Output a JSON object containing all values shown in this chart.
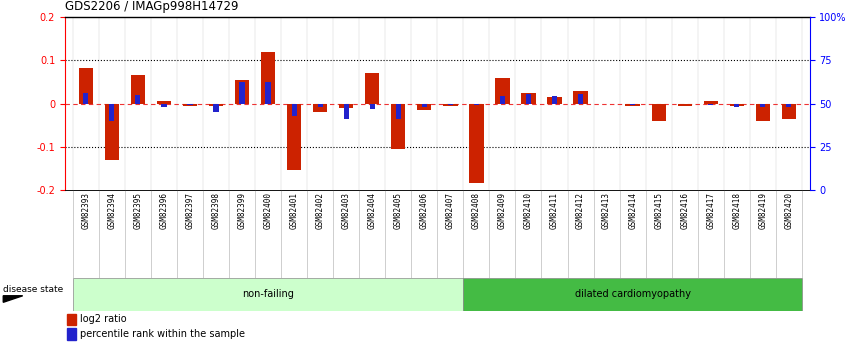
{
  "title": "GDS2206 / IMAGp998H14729",
  "samples": [
    "GSM82393",
    "GSM82394",
    "GSM82395",
    "GSM82396",
    "GSM82397",
    "GSM82398",
    "GSM82399",
    "GSM82400",
    "GSM82401",
    "GSM82402",
    "GSM82403",
    "GSM82404",
    "GSM82405",
    "GSM82406",
    "GSM82407",
    "GSM82408",
    "GSM82409",
    "GSM82410",
    "GSM82411",
    "GSM82412",
    "GSM82413",
    "GSM82414",
    "GSM82415",
    "GSM82416",
    "GSM82417",
    "GSM82418",
    "GSM82419",
    "GSM82420"
  ],
  "log2_ratio": [
    0.083,
    -0.13,
    0.065,
    0.005,
    -0.005,
    -0.005,
    0.055,
    0.12,
    -0.155,
    -0.02,
    -0.01,
    0.07,
    -0.105,
    -0.015,
    -0.005,
    -0.185,
    0.06,
    0.025,
    0.015,
    0.03,
    0.0,
    -0.005,
    -0.04,
    -0.005,
    0.005,
    -0.005,
    -0.04,
    -0.035
  ],
  "percentile_raw": [
    0.025,
    -0.04,
    0.02,
    -0.008,
    -0.003,
    -0.02,
    0.05,
    0.05,
    -0.03,
    -0.008,
    -0.035,
    -0.012,
    -0.035,
    -0.008,
    -0.003,
    -0.003,
    0.018,
    0.022,
    0.018,
    0.022,
    0.0,
    -0.003,
    0.0,
    0.0,
    -0.003,
    -0.008,
    -0.008,
    -0.008
  ],
  "nonfailing_count": 15,
  "ylim": [
    -0.2,
    0.2
  ],
  "yticks_left": [
    -0.2,
    -0.1,
    0.0,
    0.1,
    0.2
  ],
  "ytick_labels_left": [
    "-0.2",
    "-0.1",
    "0",
    "0.1",
    "0.2"
  ],
  "ytick_labels_right": [
    "0",
    "25",
    "50",
    "75",
    "100%"
  ],
  "bar_color_red": "#CC2200",
  "bar_color_blue": "#2222CC",
  "dashed_line_color": "#EE3333",
  "nonfailing_bg": "#CCFFCC",
  "dilated_bg": "#44BB44",
  "label_log2": "log2 ratio",
  "label_percentile": "percentile rank within the sample",
  "disease_state_label": "disease state",
  "nonfailing_label": "non-failing",
  "dilated_label": "dilated cardiomyopathy",
  "red_bar_width": 0.55,
  "blue_bar_width": 0.2
}
